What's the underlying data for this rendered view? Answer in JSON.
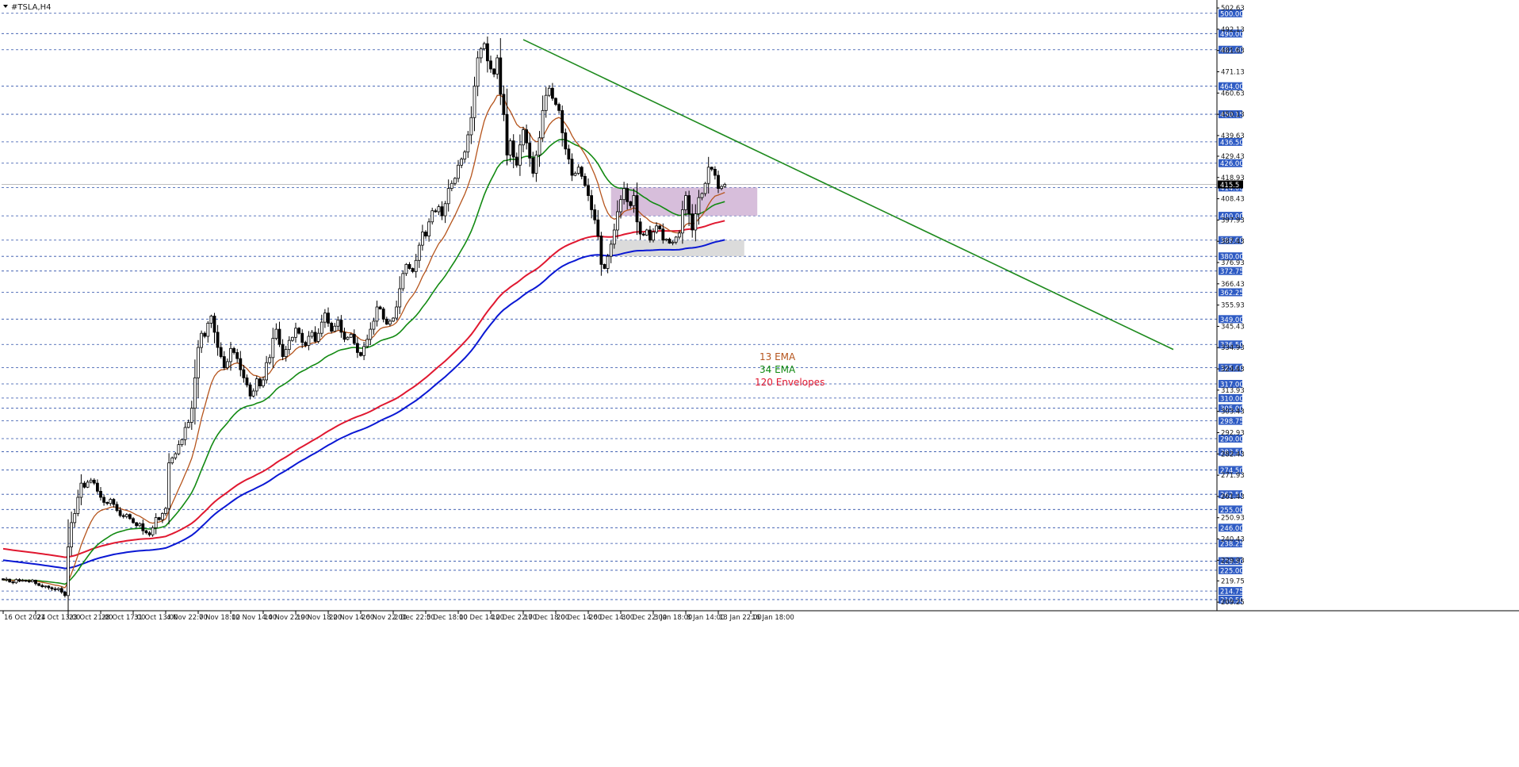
{
  "chart_data": {
    "type": "candlestick",
    "title": "#TSLA,H4",
    "timeframe": "H4",
    "ylim": [
      205.0,
      505.0
    ],
    "price_axis_labels": [
      "502.63",
      "492.13",
      "481.63",
      "471.13",
      "460.63",
      "450.13",
      "439.63",
      "429.43",
      "418.93",
      "408.43",
      "397.93",
      "387.43",
      "376.93",
      "366.43",
      "355.93",
      "345.43",
      "334.93",
      "324.43",
      "313.93",
      "303.43",
      "292.93",
      "282.43",
      "271.93",
      "261.43",
      "250.93",
      "240.43",
      "229.93",
      "219.75",
      "209.25"
    ],
    "level_badges": [
      "500.00",
      "490.00",
      "482.00",
      "464.00",
      "450.15",
      "436.50",
      "426.00",
      "414.00",
      "400.00",
      "388.00",
      "380.00",
      "372.75",
      "362.25",
      "349.00",
      "336.50",
      "325.00",
      "317.00",
      "310.00",
      "305.00",
      "298.75",
      "290.00",
      "283.50",
      "274.50",
      "262.50",
      "255.00",
      "246.00",
      "238.25",
      "229.50",
      "225.00",
      "214.75",
      "210.50"
    ],
    "time_labels": [
      {
        "label": "16 Oct 2024",
        "bar": 0
      },
      {
        "label": "21 Oct 13:00",
        "bar": 10
      },
      {
        "label": "23 Oct 21:00",
        "bar": 20
      },
      {
        "label": "28 Oct 17:00",
        "bar": 30
      },
      {
        "label": "31 Oct 13:00",
        "bar": 40
      },
      {
        "label": "4 Nov 22:00",
        "bar": 50
      },
      {
        "label": "7 Nov 18:00",
        "bar": 60
      },
      {
        "label": "12 Nov 14:00",
        "bar": 70
      },
      {
        "label": "14 Nov 22:00",
        "bar": 80
      },
      {
        "label": "19 Nov 18:00",
        "bar": 90
      },
      {
        "label": "22 Nov 14:00",
        "bar": 100
      },
      {
        "label": "26 Nov 22:00",
        "bar": 110
      },
      {
        "label": "2 Dec 22:00",
        "bar": 120
      },
      {
        "label": "5 Dec 18:00",
        "bar": 130
      },
      {
        "label": "10 Dec 14:00",
        "bar": 140
      },
      {
        "label": "12 Dec 22:00",
        "bar": 150
      },
      {
        "label": "17 Dec 18:00",
        "bar": 160
      },
      {
        "label": "20 Dec 14:00",
        "bar": 170
      },
      {
        "label": "26 Dec 14:00",
        "bar": 180
      },
      {
        "label": "30 Dec 22:00",
        "bar": 190
      },
      {
        "label": "3 Jan 18:00",
        "bar": 200
      },
      {
        "label": "8 Jan 14:00",
        "bar": 210
      },
      {
        "label": "13 Jan 22:00",
        "bar": 220
      },
      {
        "label": "16 Jan 18:00",
        "bar": 230
      }
    ],
    "bar_closes": [
      220.2,
      220.6,
      219.2,
      218.8,
      220.4,
      219.6,
      220.0,
      219.8,
      219.3,
      220.1,
      218.4,
      217.5,
      216.9,
      217.2,
      216.4,
      215.8,
      215.4,
      216.0,
      214.2,
      212.5,
      236.5,
      248.5,
      253.0,
      261.0,
      268.0,
      266.0,
      268.5,
      269.5,
      268.0,
      264.0,
      261.0,
      258.5,
      258.0,
      260.0,
      257.5,
      254.5,
      252.0,
      251.5,
      252.5,
      250.5,
      248.5,
      247.0,
      248.0,
      244.5,
      243.5,
      242.5,
      246.0,
      251.0,
      250.0,
      253.0,
      255.5,
      278.0,
      280.5,
      282.5,
      287.0,
      289.5,
      295.5,
      298.0,
      305.0,
      320.0,
      335.0,
      342.0,
      340.5,
      347.0,
      350.5,
      342.5,
      335.0,
      330.5,
      325.0,
      328.0,
      334.5,
      332.5,
      329.5,
      324.0,
      320.0,
      316.5,
      311.0,
      313.5,
      319.5,
      316.0,
      319.0,
      327.5,
      330.0,
      339.5,
      344.0,
      336.5,
      330.5,
      334.0,
      338.5,
      340.0,
      344.5,
      342.0,
      337.5,
      336.0,
      340.5,
      342.5,
      338.0,
      342.0,
      347.5,
      352.0,
      347.0,
      343.0,
      345.5,
      348.5,
      342.5,
      339.0,
      340.0,
      341.5,
      337.0,
      332.5,
      331.0,
      335.5,
      339.0,
      344.0,
      348.0,
      355.0,
      354.0,
      349.0,
      346.5,
      348.0,
      349.5,
      355.0,
      364.0,
      371.5,
      376.0,
      374.0,
      372.5,
      378.0,
      385.5,
      392.0,
      390.0,
      397.0,
      402.5,
      402.0,
      404.5,
      400.0,
      406.0,
      413.5,
      416.0,
      418.5,
      425.0,
      428.0,
      431.5,
      440.0,
      448.5,
      464.0,
      478.0,
      482.5,
      485.0,
      476.5,
      472.5,
      470.0,
      478.0,
      460.0,
      450.0,
      430.0,
      437.0,
      429.0,
      425.0,
      435.0,
      442.5,
      436.0,
      428.5,
      421.0,
      430.0,
      438.5,
      452.0,
      459.5,
      463.0,
      458.0,
      455.0,
      452.0,
      441.0,
      433.0,
      428.0,
      420.0,
      421.0,
      424.0,
      419.5,
      415.0,
      410.0,
      403.0,
      398.0,
      390.0,
      376.0,
      374.0,
      380.0,
      386.0,
      393.0,
      402.0,
      408.0,
      413.5,
      407.0,
      405.0,
      410.0,
      397.0,
      391.0,
      390.5,
      393.0,
      388.0,
      392.0,
      395.0,
      393.5,
      388.0,
      388.5,
      386.5,
      387.0,
      389.5,
      391.5,
      403.0,
      410.0,
      401.0,
      393.0,
      401.0,
      409.0,
      411.0,
      416.0,
      424.0,
      423.0,
      420.0,
      413.5,
      414.5,
      415.5
    ],
    "series": [
      {
        "name": "13 EMA",
        "color": "#b5541c"
      },
      {
        "name": "34 EMA",
        "color": "#128a12"
      },
      {
        "name": "120 Envelopes",
        "color": "#e01830"
      },
      {
        "name": "120 Envelopes lower",
        "color": "#0a18d4"
      }
    ],
    "trendline": {
      "from": {
        "bar": 160,
        "price": 487.0
      },
      "to": {
        "bar": 360,
        "price": 334.0
      },
      "color": "#1e8a1e"
    },
    "zones": [
      {
        "color": "#c9a8cf",
        "from_bar": 187,
        "to_bar": 232,
        "low": 400.0,
        "high": 414.0
      },
      {
        "color": "#cfcfcf",
        "from_bar": 187,
        "to_bar": 228,
        "low": 380.0,
        "high": 388.0
      }
    ],
    "current_price": 415.5,
    "current_price_label": "415.5",
    "legend": [
      "13 EMA",
      "34 EMA",
      "120 Envelopes"
    ],
    "legend_colors": [
      "#b5541c",
      "#128a12",
      "#e01830"
    ],
    "grid": true
  },
  "colors": {
    "background": "#ffffff",
    "grid": "#2a4ea8",
    "badge": "#2e5bc4",
    "bull_candle": "#ffffff",
    "bear_candle": "#000000",
    "axis_text": "#1a1a1a"
  }
}
